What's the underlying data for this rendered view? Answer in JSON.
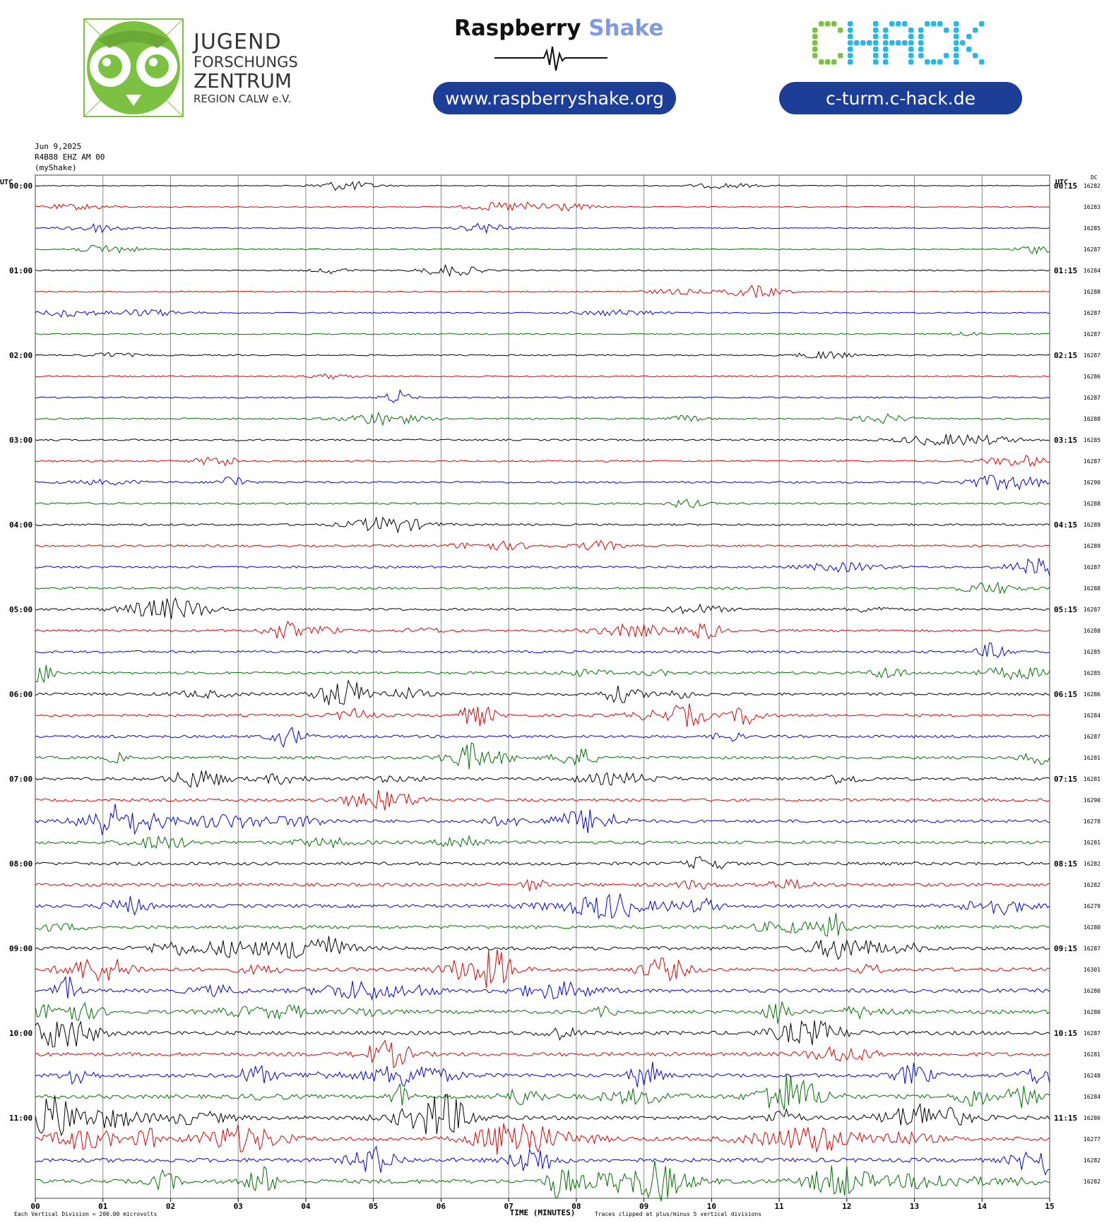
{
  "header": {
    "jfz": {
      "line1": "JUGEND",
      "line2": "FORSCHUNGS",
      "line3": "ZENTRUM",
      "line4": "REGION CALW e.V."
    },
    "raspberry": {
      "word1": "Raspberry",
      "word2": "Shake",
      "url": "www.raspberryshake.org"
    },
    "chack": {
      "logo": "CHACK",
      "url": "c-turm.c-hack.de"
    },
    "colors": {
      "pill": "#1d3e97",
      "jfz_green": "#7cc142",
      "chack_green": "#7cc142",
      "chack_blue": "#29b6e8",
      "shake_blue": "#7f9ae0"
    }
  },
  "meta": {
    "date": "Jun 9,2025",
    "station": "R4B88 EHZ AM 00",
    "source": "(myShake)"
  },
  "chart_data": {
    "type": "helicorder",
    "left_axis_title": "UTC",
    "right_axis_title": "UTC",
    "dc_title": "DC",
    "xlabel": "TIME (MINUTES)",
    "x_range": [
      0,
      15
    ],
    "x_ticks": [
      "00",
      "01",
      "02",
      "03",
      "04",
      "05",
      "06",
      "07",
      "08",
      "09",
      "10",
      "11",
      "12",
      "13",
      "14",
      "15"
    ],
    "left_labels": [
      "00:00",
      "01:00",
      "02:00",
      "03:00",
      "04:00",
      "05:00",
      "06:00",
      "07:00",
      "08:00",
      "09:00",
      "10:00",
      "11:00"
    ],
    "right_labels": [
      "00:15",
      "01:15",
      "02:15",
      "03:15",
      "04:15",
      "05:15",
      "06:15",
      "07:15",
      "08:15",
      "09:15",
      "10:15",
      "11:15"
    ],
    "trace_colors": [
      "#000000",
      "#e00000",
      "#0000e0",
      "#007000"
    ],
    "dc_values": [
      "16282",
      "16283",
      "16285",
      "16287",
      "16284",
      "16288",
      "16287",
      "16287",
      "16287",
      "16286",
      "16287",
      "16288",
      "16285",
      "16287",
      "16290",
      "16288",
      "16289",
      "16289",
      "16287",
      "16288",
      "16287",
      "16288",
      "16285",
      "16285",
      "16286",
      "16284",
      "16287",
      "16281",
      "16281",
      "16290",
      "16278",
      "16281",
      "16282",
      "16282",
      "16279",
      "16280",
      "16287",
      "16301",
      "16280",
      "16280",
      "16287",
      "16281",
      "16248",
      "16284",
      "16286",
      "16277",
      "16282",
      "16282"
    ],
    "footer_left": "Each Vertical Division =  200.00 microvolts",
    "footer_right": "Traces clipped at plus/minus 5 vertical divisions"
  }
}
